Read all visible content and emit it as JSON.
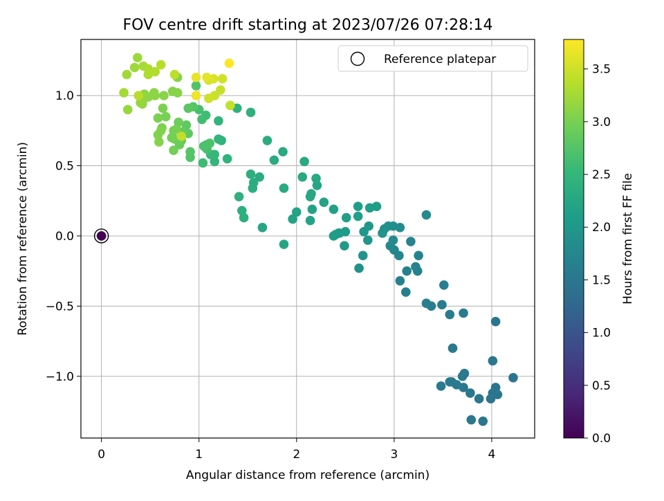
{
  "chart_data": {
    "type": "scatter",
    "title": "FOV centre drift starting at 2023/07/26 07:28:14",
    "xlabel": "Angular distance from reference (arcmin)",
    "ylabel": "Rotation from reference (arcmin)",
    "xlim": [
      -0.21,
      4.44
    ],
    "ylim": [
      -1.44,
      1.4
    ],
    "x_ticks": [
      0,
      1,
      2,
      3,
      4
    ],
    "y_ticks": [
      -1.0,
      -0.5,
      0.0,
      0.5,
      1.0
    ],
    "x_tick_labels": [
      "0",
      "1",
      "2",
      "3",
      "4"
    ],
    "y_tick_labels": [
      "−1.0",
      "−0.5",
      "0.0",
      "0.5",
      "1.0"
    ],
    "grid": true,
    "legend": {
      "position": "top-right",
      "label": "Reference platepar"
    },
    "reference_point": {
      "x": 0,
      "y": 0,
      "hours": 0.0
    },
    "colorbar": {
      "label": "Hours from first FF file",
      "range": [
        0.0,
        3.78
      ],
      "ticks": [
        0.0,
        0.5,
        1.0,
        1.5,
        2.0,
        2.5,
        3.0,
        3.5
      ],
      "tick_labels": [
        "0.0",
        "0.5",
        "1.0",
        "1.5",
        "2.0",
        "2.5",
        "3.0",
        "3.5"
      ],
      "colormap": "viridis"
    },
    "points": [
      [
        4.22,
        -1.01,
        1.45
      ],
      [
        4.06,
        -1.13,
        1.45
      ],
      [
        4.04,
        -1.08,
        1.46
      ],
      [
        3.99,
        -1.16,
        1.47
      ],
      [
        4.01,
        -1.12,
        1.47
      ],
      [
        4.04,
        -0.61,
        1.48
      ],
      [
        3.91,
        -1.32,
        1.49
      ],
      [
        3.87,
        -1.16,
        1.5
      ],
      [
        3.79,
        -1.31,
        1.5
      ],
      [
        3.78,
        -1.12,
        1.51
      ],
      [
        4.01,
        -0.89,
        1.51
      ],
      [
        3.71,
        -1.08,
        1.52
      ],
      [
        3.72,
        -0.98,
        1.53
      ],
      [
        3.7,
        -1.0,
        1.53
      ],
      [
        3.64,
        -1.06,
        1.54
      ],
      [
        3.59,
        -1.04,
        1.55
      ],
      [
        3.57,
        -1.04,
        1.55
      ],
      [
        3.48,
        -1.07,
        1.56
      ],
      [
        3.71,
        -0.55,
        1.57
      ],
      [
        3.6,
        -0.8,
        1.57
      ],
      [
        3.57,
        -0.56,
        1.58
      ],
      [
        3.38,
        -0.5,
        1.59
      ],
      [
        3.49,
        -0.49,
        1.6
      ],
      [
        3.33,
        -0.48,
        1.61
      ],
      [
        3.51,
        -0.35,
        1.62
      ],
      [
        3.12,
        -0.4,
        1.63
      ],
      [
        3.06,
        -0.32,
        1.64
      ],
      [
        3.24,
        -0.25,
        1.66
      ],
      [
        3.13,
        -0.25,
        1.67
      ],
      [
        3.22,
        -0.22,
        1.68
      ],
      [
        3.25,
        -0.14,
        1.7
      ],
      [
        3.17,
        -0.04,
        1.72
      ],
      [
        3.05,
        -0.14,
        1.74
      ],
      [
        3.0,
        -0.1,
        1.76
      ],
      [
        2.96,
        -0.07,
        1.78
      ],
      [
        2.99,
        -0.03,
        1.8
      ],
      [
        3.33,
        0.15,
        1.82
      ],
      [
        3.06,
        0.06,
        1.84
      ],
      [
        2.99,
        0.07,
        1.86
      ],
      [
        2.94,
        0.07,
        1.88
      ],
      [
        2.9,
        0.05,
        1.9
      ],
      [
        2.88,
        0.02,
        1.92
      ],
      [
        2.64,
        -0.23,
        1.93
      ],
      [
        2.68,
        -0.14,
        1.95
      ],
      [
        2.73,
        -0.03,
        1.96
      ],
      [
        2.69,
        0.03,
        1.98
      ],
      [
        2.74,
        0.07,
        2.0
      ],
      [
        2.49,
        -0.07,
        2.02
      ],
      [
        2.5,
        0.03,
        2.04
      ],
      [
        2.4,
        0.01,
        2.06
      ],
      [
        2.44,
        0.02,
        2.07
      ],
      [
        2.43,
        0.02,
        2.08
      ],
      [
        2.38,
        0.0,
        2.09
      ],
      [
        2.75,
        0.2,
        2.1
      ],
      [
        2.82,
        0.21,
        2.11
      ],
      [
        2.63,
        0.21,
        2.12
      ],
      [
        2.63,
        0.14,
        2.13
      ],
      [
        2.51,
        0.13,
        2.14
      ],
      [
        2.38,
        0.19,
        2.15
      ],
      [
        2.28,
        0.24,
        2.17
      ],
      [
        2.16,
        0.19,
        2.18
      ],
      [
        2.14,
        0.11,
        2.19
      ],
      [
        2.0,
        0.17,
        2.2
      ],
      [
        1.96,
        0.12,
        2.21
      ],
      [
        1.87,
        -0.06,
        2.22
      ],
      [
        1.65,
        0.06,
        2.23
      ],
      [
        2.21,
        0.36,
        2.24
      ],
      [
        2.14,
        0.28,
        2.25
      ],
      [
        2.15,
        0.3,
        2.26
      ],
      [
        2.2,
        0.41,
        2.27
      ],
      [
        2.06,
        0.42,
        2.28
      ],
      [
        2.08,
        0.53,
        2.29
      ],
      [
        1.87,
        0.34,
        2.3
      ],
      [
        1.86,
        0.6,
        2.31
      ],
      [
        1.77,
        0.54,
        2.32
      ],
      [
        1.7,
        0.68,
        2.33
      ],
      [
        1.62,
        0.42,
        2.34
      ],
      [
        1.56,
        0.38,
        2.35
      ],
      [
        1.55,
        0.34,
        2.36
      ],
      [
        1.53,
        0.44,
        2.37
      ],
      [
        1.46,
        0.13,
        2.38
      ],
      [
        1.44,
        0.18,
        2.39
      ],
      [
        1.41,
        0.28,
        2.4
      ],
      [
        1.53,
        0.88,
        2.41
      ],
      [
        1.39,
        0.91,
        2.42
      ],
      [
        1.29,
        0.55,
        2.43
      ],
      [
        1.23,
        0.68,
        2.44
      ],
      [
        1.2,
        0.82,
        2.46
      ],
      [
        1.2,
        0.69,
        2.48
      ],
      [
        1.16,
        0.53,
        2.5
      ],
      [
        1.16,
        0.58,
        2.52
      ],
      [
        1.12,
        0.58,
        2.54
      ],
      [
        1.08,
        0.65,
        2.56
      ],
      [
        1.04,
        0.52,
        2.58
      ],
      [
        1.07,
        0.86,
        2.6
      ],
      [
        1.03,
        0.83,
        2.62
      ],
      [
        1.0,
        0.9,
        2.64
      ],
      [
        1.08,
        0.62,
        2.66
      ],
      [
        1.05,
        0.64,
        2.68
      ],
      [
        1.11,
        0.66,
        2.7
      ],
      [
        0.97,
        1.07,
        2.72
      ],
      [
        0.91,
        0.56,
        2.74
      ],
      [
        0.91,
        0.6,
        2.76
      ],
      [
        0.94,
        0.92,
        2.78
      ],
      [
        0.89,
        0.91,
        2.8
      ],
      [
        0.89,
        0.73,
        2.82
      ],
      [
        0.87,
        0.79,
        2.84
      ],
      [
        0.83,
        0.74,
        2.86
      ],
      [
        0.82,
        0.68,
        2.88
      ],
      [
        0.8,
        0.65,
        2.9
      ],
      [
        0.79,
        0.81,
        2.92
      ],
      [
        0.75,
        0.69,
        2.94
      ],
      [
        0.74,
        0.61,
        2.96
      ],
      [
        0.72,
        0.7,
        2.97
      ],
      [
        0.74,
        0.75,
        2.98
      ],
      [
        0.77,
        0.76,
        2.99
      ],
      [
        0.66,
        0.85,
        3.0
      ],
      [
        0.63,
        0.91,
        3.01
      ],
      [
        0.58,
        0.84,
        3.02
      ],
      [
        0.62,
        0.77,
        3.03
      ],
      [
        0.61,
        0.75,
        3.04
      ],
      [
        0.58,
        0.72,
        3.05
      ],
      [
        0.59,
        0.67,
        3.06
      ],
      [
        0.73,
        1.03,
        3.07
      ],
      [
        0.78,
        1.13,
        3.08
      ],
      [
        0.78,
        1.02,
        3.09
      ],
      [
        0.64,
        1.0,
        3.1
      ],
      [
        0.54,
        1.02,
        3.11
      ],
      [
        0.55,
        1.0,
        3.12
      ],
      [
        0.48,
        0.99,
        3.13
      ],
      [
        0.44,
        1.01,
        3.14
      ],
      [
        0.44,
        0.98,
        3.15
      ],
      [
        0.42,
        0.94,
        3.16
      ],
      [
        0.4,
        0.95,
        3.17
      ],
      [
        0.27,
        0.9,
        3.18
      ],
      [
        0.37,
        1.27,
        3.2
      ],
      [
        0.34,
        1.2,
        3.22
      ],
      [
        0.26,
        1.15,
        3.24
      ],
      [
        0.23,
        1.02,
        3.26
      ],
      [
        0.43,
        1.21,
        3.28
      ],
      [
        0.48,
        1.19,
        3.3
      ],
      [
        0.48,
        1.15,
        3.32
      ],
      [
        0.55,
        1.17,
        3.34
      ],
      [
        0.61,
        1.22,
        3.36
      ],
      [
        0.38,
        1.0,
        3.38
      ],
      [
        0.75,
        1.15,
        3.4
      ],
      [
        0.82,
        0.71,
        3.42
      ],
      [
        1.32,
        0.93,
        3.44
      ],
      [
        1.22,
        1.04,
        3.46
      ],
      [
        1.16,
        1.0,
        3.48
      ],
      [
        1.1,
        0.98,
        3.5
      ],
      [
        1.24,
        1.12,
        3.52
      ],
      [
        1.1,
        1.11,
        3.55
      ],
      [
        1.15,
        1.12,
        3.58
      ],
      [
        1.08,
        1.13,
        3.62
      ],
      [
        0.97,
        1.13,
        3.65
      ],
      [
        0.97,
        1.0,
        3.7
      ],
      [
        1.31,
        1.23,
        3.78
      ]
    ]
  }
}
